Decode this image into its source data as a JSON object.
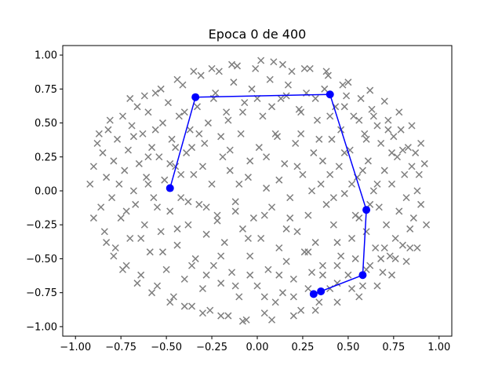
{
  "chart_data": {
    "type": "scatter",
    "title": "Epoca 0 de 400",
    "xlabel": "",
    "ylabel": "",
    "xlim": [
      -1.07,
      1.07
    ],
    "ylim": [
      -1.07,
      1.07
    ],
    "xticks": [
      "−1.00",
      "−0.75",
      "−0.50",
      "−0.25",
      "0.00",
      "0.25",
      "0.50",
      "0.75",
      "1.00"
    ],
    "xtick_values": [
      -1.0,
      -0.75,
      -0.5,
      -0.25,
      0.0,
      0.25,
      0.5,
      0.75,
      1.0
    ],
    "yticks": [
      "−1.00",
      "−0.75",
      "−0.50",
      "−0.25",
      "0.00",
      "0.25",
      "0.50",
      "0.75",
      "1.00"
    ],
    "ytick_values": [
      -1.0,
      -0.75,
      -0.5,
      -0.25,
      0.0,
      0.25,
      0.5,
      0.75,
      1.0
    ],
    "grid": false,
    "series": [
      {
        "marker": "x",
        "color": "#7f7f7f",
        "points": [
          [
            -0.92,
            0.05
          ],
          [
            -0.9,
            0.18
          ],
          [
            -0.88,
            0.35
          ],
          [
            -0.86,
            -0.12
          ],
          [
            -0.85,
            0.28
          ],
          [
            -0.84,
            -0.3
          ],
          [
            -0.83,
            0.1
          ],
          [
            -0.82,
            0.45
          ],
          [
            -0.8,
            -0.05
          ],
          [
            -0.79,
            0.22
          ],
          [
            -0.78,
            -0.42
          ],
          [
            -0.77,
            0.38
          ],
          [
            -0.76,
            0.05
          ],
          [
            -0.75,
            -0.2
          ],
          [
            -0.74,
            0.55
          ],
          [
            -0.73,
            0.15
          ],
          [
            -0.72,
            -0.55
          ],
          [
            -0.71,
            0.3
          ],
          [
            -0.7,
            -0.35
          ],
          [
            -0.69,
            0.48
          ],
          [
            -0.68,
            0.0
          ],
          [
            -0.67,
            -0.1
          ],
          [
            -0.66,
            0.62
          ],
          [
            -0.65,
            0.2
          ],
          [
            -0.64,
            -0.62
          ],
          [
            -0.63,
            0.42
          ],
          [
            -0.62,
            -0.25
          ],
          [
            -0.61,
            0.1
          ],
          [
            -0.6,
            0.58
          ],
          [
            -0.59,
            -0.45
          ],
          [
            -0.58,
            0.32
          ],
          [
            -0.57,
            -0.05
          ],
          [
            -0.56,
            0.72
          ],
          [
            -0.55,
            -0.7
          ],
          [
            -0.54,
            0.25
          ],
          [
            -0.53,
            -0.3
          ],
          [
            -0.52,
            0.5
          ],
          [
            -0.51,
            0.08
          ],
          [
            -0.5,
            -0.58
          ],
          [
            -0.49,
            0.65
          ],
          [
            -0.48,
            -0.15
          ],
          [
            -0.47,
            0.38
          ],
          [
            -0.46,
            -0.78
          ],
          [
            -0.45,
            0.18
          ],
          [
            -0.44,
            -0.4
          ],
          [
            -0.43,
            0.55
          ],
          [
            -0.42,
            -0.05
          ],
          [
            -0.41,
            0.78
          ],
          [
            -0.4,
            -0.65
          ],
          [
            -0.39,
            0.28
          ],
          [
            -0.38,
            -0.25
          ],
          [
            -0.37,
            0.45
          ],
          [
            -0.36,
            -0.85
          ],
          [
            -0.35,
            0.12
          ],
          [
            -0.34,
            -0.5
          ],
          [
            -0.33,
            0.62
          ],
          [
            -0.32,
            -0.1
          ],
          [
            -0.31,
            0.85
          ],
          [
            -0.3,
            -0.72
          ],
          [
            -0.29,
            0.35
          ],
          [
            -0.28,
            -0.32
          ],
          [
            -0.27,
            0.5
          ],
          [
            -0.26,
            -0.88
          ],
          [
            -0.25,
            0.05
          ],
          [
            -0.24,
            -0.55
          ],
          [
            -0.23,
            0.72
          ],
          [
            -0.22,
            -0.18
          ],
          [
            -0.21,
            0.88
          ],
          [
            -0.2,
            -0.68
          ],
          [
            -0.19,
            0.25
          ],
          [
            -0.18,
            -0.38
          ],
          [
            -0.17,
            0.58
          ],
          [
            -0.16,
            -0.92
          ],
          [
            -0.15,
            0.15
          ],
          [
            -0.14,
            -0.6
          ],
          [
            -0.13,
            0.8
          ],
          [
            -0.12,
            -0.08
          ],
          [
            -0.11,
            0.92
          ],
          [
            -0.1,
            -0.78
          ],
          [
            -0.09,
            0.42
          ],
          [
            -0.08,
            -0.28
          ],
          [
            -0.07,
            0.65
          ],
          [
            -0.06,
            -0.95
          ],
          [
            -0.05,
            0.1
          ],
          [
            -0.04,
            -0.48
          ],
          [
            -0.03,
            0.75
          ],
          [
            -0.02,
            -0.2
          ],
          [
            -0.01,
            0.9
          ],
          [
            0.0,
            -0.7
          ],
          [
            0.01,
            0.32
          ],
          [
            0.02,
            -0.35
          ],
          [
            0.03,
            0.55
          ],
          [
            0.04,
            -0.9
          ],
          [
            0.05,
            0.02
          ],
          [
            0.06,
            -0.58
          ],
          [
            0.07,
            0.82
          ],
          [
            0.08,
            -0.12
          ],
          [
            0.09,
            0.95
          ],
          [
            0.1,
            -0.82
          ],
          [
            0.11,
            0.4
          ],
          [
            0.12,
            -0.42
          ],
          [
            0.13,
            0.68
          ],
          [
            0.14,
            -0.75
          ],
          [
            0.15,
            0.2
          ],
          [
            0.16,
            -0.52
          ],
          [
            0.17,
            0.78
          ],
          [
            0.18,
            -0.05
          ],
          [
            0.19,
            0.88
          ],
          [
            0.2,
            -0.65
          ],
          [
            0.21,
            0.35
          ],
          [
            0.22,
            -0.3
          ],
          [
            0.23,
            0.6
          ],
          [
            0.24,
            -0.88
          ],
          [
            0.25,
            0.12
          ],
          [
            0.26,
            -0.45
          ],
          [
            0.27,
            0.72
          ],
          [
            0.28,
            -0.18
          ],
          [
            0.29,
            0.9
          ],
          [
            0.3,
            -0.6
          ],
          [
            0.31,
            0.28
          ],
          [
            0.32,
            -0.38
          ],
          [
            0.33,
            0.52
          ],
          [
            0.34,
            -0.82
          ],
          [
            0.35,
            0.05
          ],
          [
            0.36,
            -0.55
          ],
          [
            0.37,
            0.75
          ],
          [
            0.38,
            -0.1
          ],
          [
            0.39,
            0.85
          ],
          [
            0.4,
            -0.72
          ],
          [
            0.41,
            0.38
          ],
          [
            0.42,
            -0.25
          ],
          [
            0.43,
            0.62
          ],
          [
            0.44,
            -0.68
          ],
          [
            0.45,
            0.18
          ],
          [
            0.46,
            -0.48
          ],
          [
            0.47,
            0.78
          ],
          [
            0.48,
            -0.02
          ],
          [
            0.49,
            0.7
          ],
          [
            0.5,
            -0.62
          ],
          [
            0.51,
            0.3
          ],
          [
            0.52,
            -0.35
          ],
          [
            0.53,
            0.55
          ],
          [
            0.54,
            -0.5
          ],
          [
            0.55,
            0.1
          ],
          [
            0.56,
            -0.2
          ],
          [
            0.57,
            0.68
          ],
          [
            0.58,
            -0.7
          ],
          [
            0.59,
            0.42
          ],
          [
            0.6,
            -0.3
          ],
          [
            0.61,
            0.22
          ],
          [
            0.62,
            -0.55
          ],
          [
            0.63,
            0.6
          ],
          [
            0.64,
            0.0
          ],
          [
            0.65,
            -0.42
          ],
          [
            0.66,
            0.48
          ],
          [
            0.67,
            -0.12
          ],
          [
            0.68,
            0.35
          ],
          [
            0.69,
            -0.6
          ],
          [
            0.7,
            0.15
          ],
          [
            0.71,
            -0.25
          ],
          [
            0.72,
            0.52
          ],
          [
            0.73,
            -0.48
          ],
          [
            0.74,
            0.05
          ],
          [
            0.75,
            0.4
          ],
          [
            0.76,
            -0.35
          ],
          [
            0.77,
            0.25
          ],
          [
            0.78,
            -0.15
          ],
          [
            0.79,
            0.45
          ],
          [
            0.8,
            -0.4
          ],
          [
            0.81,
            0.12
          ],
          [
            0.82,
            -0.05
          ],
          [
            0.83,
            0.32
          ],
          [
            0.84,
            -0.28
          ],
          [
            0.85,
            0.18
          ],
          [
            0.86,
            -0.2
          ],
          [
            0.87,
            0.28
          ],
          [
            0.88,
            0.0
          ],
          [
            0.89,
            0.12
          ],
          [
            0.9,
            -0.1
          ],
          [
            0.92,
            0.2
          ],
          [
            -0.9,
            -0.2
          ],
          [
            -0.87,
            0.42
          ],
          [
            -0.83,
            -0.38
          ],
          [
            -0.81,
            0.52
          ],
          [
            -0.79,
            -0.48
          ],
          [
            -0.74,
            -0.58
          ],
          [
            -0.7,
            0.68
          ],
          [
            -0.66,
            -0.68
          ],
          [
            -0.62,
            0.7
          ],
          [
            -0.58,
            -0.75
          ],
          [
            -0.53,
            0.75
          ],
          [
            -0.48,
            -0.82
          ],
          [
            -0.44,
            0.82
          ],
          [
            -0.4,
            -0.85
          ],
          [
            -0.35,
            0.88
          ],
          [
            -0.3,
            -0.9
          ],
          [
            -0.25,
            0.9
          ],
          [
            -0.2,
            -0.92
          ],
          [
            -0.14,
            0.93
          ],
          [
            -0.08,
            -0.96
          ],
          [
            0.02,
            0.96
          ],
          [
            0.08,
            -0.95
          ],
          [
            0.14,
            0.93
          ],
          [
            0.2,
            -0.92
          ],
          [
            0.26,
            0.9
          ],
          [
            0.32,
            -0.88
          ],
          [
            0.38,
            0.88
          ],
          [
            0.44,
            -0.82
          ],
          [
            0.5,
            0.8
          ],
          [
            0.56,
            -0.78
          ],
          [
            0.62,
            0.74
          ],
          [
            0.66,
            -0.7
          ],
          [
            0.7,
            0.66
          ],
          [
            0.74,
            -0.62
          ],
          [
            0.78,
            0.58
          ],
          [
            0.82,
            -0.52
          ],
          [
            0.85,
            0.48
          ],
          [
            0.88,
            -0.42
          ],
          [
            0.9,
            0.35
          ],
          [
            0.93,
            -0.25
          ],
          [
            -0.6,
            0.05
          ],
          [
            -0.55,
            -0.12
          ],
          [
            -0.45,
            0.32
          ],
          [
            -0.38,
            -0.08
          ],
          [
            -0.3,
            0.18
          ],
          [
            -0.22,
            -0.22
          ],
          [
            -0.15,
            0.3
          ],
          [
            -0.1,
            0.05
          ],
          [
            -0.05,
            -0.35
          ],
          [
            0.05,
            0.25
          ],
          [
            0.12,
            0.08
          ],
          [
            0.18,
            -0.2
          ],
          [
            0.24,
            0.42
          ],
          [
            0.3,
            0.0
          ],
          [
            0.36,
            0.22
          ],
          [
            0.42,
            -0.05
          ],
          [
            0.46,
            0.45
          ],
          [
            0.52,
            0.05
          ],
          [
            0.58,
            0.15
          ],
          [
            0.62,
            -0.1
          ],
          [
            -0.42,
            0.12
          ],
          [
            -0.36,
            0.32
          ],
          [
            -0.28,
            -0.12
          ],
          [
            -0.2,
            0.4
          ],
          [
            -0.12,
            -0.15
          ],
          [
            -0.04,
            0.22
          ],
          [
            0.04,
            -0.18
          ],
          [
            0.1,
            0.42
          ],
          [
            0.16,
            -0.28
          ],
          [
            0.22,
            0.18
          ],
          [
            0.28,
            -0.45
          ],
          [
            0.34,
            0.38
          ],
          [
            0.4,
            0.12
          ],
          [
            0.44,
            -0.38
          ],
          [
            0.48,
            0.28
          ],
          [
            0.54,
            -0.18
          ],
          [
            0.6,
            0.38
          ],
          [
            0.66,
            0.05
          ],
          [
            0.7,
            -0.42
          ],
          [
            0.74,
            0.28
          ],
          [
            -0.72,
            -0.15
          ],
          [
            -0.68,
            0.4
          ],
          [
            -0.64,
            -0.35
          ],
          [
            -0.6,
            0.25
          ],
          [
            -0.56,
            0.45
          ],
          [
            -0.52,
            -0.45
          ],
          [
            -0.48,
            0.2
          ],
          [
            -0.44,
            -0.28
          ],
          [
            -0.4,
            0.58
          ],
          [
            -0.36,
            -0.55
          ],
          [
            -0.32,
            0.42
          ],
          [
            -0.28,
            -0.62
          ],
          [
            -0.24,
            0.68
          ],
          [
            -0.2,
            -0.48
          ],
          [
            -0.16,
            0.52
          ],
          [
            -0.12,
            -0.7
          ],
          [
            -0.08,
            0.58
          ],
          [
            -0.04,
            -0.62
          ],
          [
            0.0,
            0.68
          ],
          [
            0.04,
            -0.78
          ],
          [
            0.08,
            0.62
          ],
          [
            0.12,
            -0.62
          ],
          [
            0.16,
            0.7
          ],
          [
            0.2,
            -0.78
          ],
          [
            0.24,
            0.58
          ],
          [
            0.28,
            -0.72
          ],
          [
            0.32,
            0.68
          ],
          [
            0.36,
            -0.62
          ],
          [
            0.4,
            0.55
          ],
          [
            0.44,
            -0.55
          ],
          [
            0.48,
            0.62
          ],
          [
            0.52,
            -0.72
          ],
          [
            0.56,
            0.52
          ],
          [
            0.6,
            -0.58
          ],
          [
            0.64,
            0.55
          ],
          [
            0.68,
            -0.5
          ],
          [
            0.72,
            0.45
          ],
          [
            0.76,
            -0.5
          ],
          [
            0.8,
            0.3
          ],
          [
            0.84,
            -0.42
          ]
        ]
      },
      {
        "marker": "line-circle",
        "color": "#0000ff",
        "points": [
          [
            -0.48,
            0.02
          ],
          [
            -0.34,
            0.69
          ],
          [
            0.4,
            0.71
          ],
          [
            0.6,
            -0.14
          ],
          [
            0.58,
            -0.62
          ],
          [
            0.35,
            -0.74
          ],
          [
            0.31,
            -0.76
          ]
        ]
      }
    ]
  }
}
